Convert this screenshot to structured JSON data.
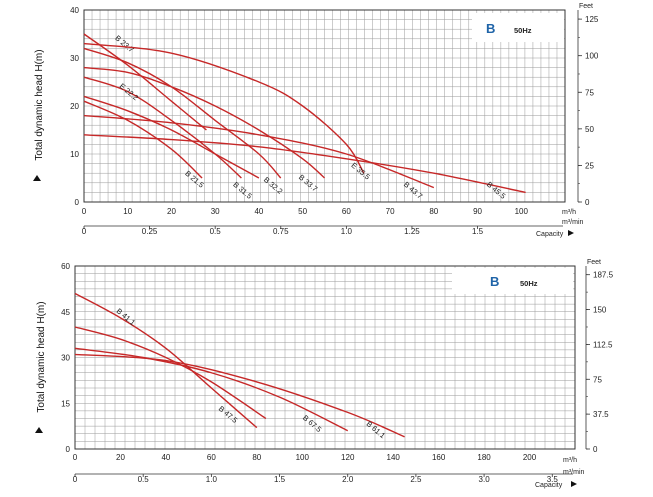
{
  "chart_data": [
    {
      "type": "line",
      "ylabel": "Total dynamic head H(m)",
      "ylim": [
        0,
        40
      ],
      "y_ticks": [
        "0",
        "10",
        "20",
        "30",
        "40"
      ],
      "xlim": [
        0,
        110
      ],
      "x_ticks": [
        "0",
        "10",
        "20",
        "30",
        "40",
        "50",
        "60",
        "70",
        "80",
        "90",
        "100"
      ],
      "x_unit": "m³/h",
      "x2_ticks": [
        "0",
        "0.25",
        "0.5",
        "0.75",
        "1.0",
        "1.25",
        "1.5"
      ],
      "x2_unit": "m³/min",
      "capacity_label": "Capacity",
      "feet_label": "Feet",
      "feet_ticks": [
        "0",
        "25",
        "50",
        "75",
        "100",
        "125"
      ],
      "brand": "B",
      "freq": "50Hz",
      "series": [
        {
          "name": "B 21.5",
          "x": [
            0,
            10,
            20,
            27
          ],
          "y": [
            21,
            17,
            11,
            5
          ],
          "label_at": [
            23,
            5.8
          ]
        },
        {
          "name": "B 23.7",
          "x": [
            0,
            10,
            20,
            28
          ],
          "y": [
            35,
            28.5,
            21,
            15
          ],
          "label_at": [
            7,
            34
          ]
        },
        {
          "name": "E 22.2",
          "x": [
            0,
            10,
            20,
            30,
            36
          ],
          "y": [
            26,
            23,
            17,
            10,
            5
          ],
          "label_at": [
            8,
            24
          ]
        },
        {
          "name": "B 31.5",
          "x": [
            0,
            10,
            20,
            30,
            40
          ],
          "y": [
            22,
            19,
            15,
            10,
            5
          ],
          "label_at": [
            34,
            3.5
          ]
        },
        {
          "name": "B 32.2",
          "x": [
            0,
            10,
            20,
            30,
            40,
            45
          ],
          "y": [
            32,
            29,
            24,
            17,
            10,
            5
          ],
          "label_at": [
            41,
            4.5
          ]
        },
        {
          "name": "B 33.7",
          "x": [
            0,
            10,
            20,
            30,
            40,
            50,
            55
          ],
          "y": [
            28,
            27,
            24,
            20,
            15,
            9,
            5
          ],
          "label_at": [
            49,
            5
          ]
        },
        {
          "name": "E 35.5",
          "x": [
            0,
            20,
            40,
            50,
            60,
            64
          ],
          "y": [
            33,
            31,
            25,
            20,
            12,
            6
          ],
          "label_at": [
            61,
            7.5
          ]
        },
        {
          "name": "B 43.7",
          "x": [
            0,
            20,
            40,
            60,
            80
          ],
          "y": [
            18,
            16.5,
            14,
            10,
            3
          ],
          "label_at": [
            73,
            3.5
          ]
        },
        {
          "name": "B 45.5",
          "x": [
            0,
            20,
            40,
            60,
            80,
            101
          ],
          "y": [
            14,
            13,
            11.5,
            9,
            6,
            2
          ],
          "label_at": [
            92,
            3.5
          ]
        }
      ]
    },
    {
      "type": "line",
      "ylabel": "Total dynamic head H(m)",
      "ylim": [
        0,
        60
      ],
      "y_ticks": [
        "0",
        "15",
        "30",
        "45",
        "60"
      ],
      "xlim": [
        0,
        220
      ],
      "x_ticks": [
        "0",
        "20",
        "40",
        "60",
        "80",
        "100",
        "120",
        "140",
        "160",
        "180",
        "200"
      ],
      "x_unit": "m³/h",
      "x2_ticks": [
        "0",
        "0.5",
        "1.0",
        "1.5",
        "2.0",
        "2.5",
        "3.0",
        "3.5"
      ],
      "x2_unit": "m³/min",
      "capacity_label": "Capacity",
      "feet_label": "Feet",
      "feet_ticks": [
        "0",
        "37.5",
        "75",
        "112.5",
        "150",
        "187.5"
      ],
      "brand": "B",
      "freq": "50Hz",
      "series": [
        {
          "name": "B 41.1",
          "x": [
            0,
            20,
            40,
            60,
            80
          ],
          "y": [
            51,
            43,
            33,
            20,
            7
          ],
          "label_at": [
            18,
            45
          ]
        },
        {
          "name": "B 47.5",
          "x": [
            0,
            20,
            40,
            60,
            84
          ],
          "y": [
            40,
            36,
            30,
            22,
            10
          ],
          "label_at": [
            63,
            13
          ]
        },
        {
          "name": "B 67.5",
          "x": [
            0,
            30,
            60,
            90,
            120
          ],
          "y": [
            33,
            30,
            25,
            17,
            6
          ],
          "label_at": [
            100,
            10
          ]
        },
        {
          "name": "B 61.1",
          "x": [
            0,
            40,
            80,
            120,
            145
          ],
          "y": [
            31,
            29,
            22,
            12,
            4
          ],
          "label_at": [
            128,
            8
          ]
        }
      ]
    }
  ]
}
